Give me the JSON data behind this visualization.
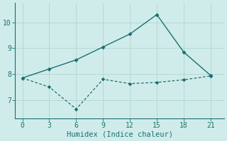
{
  "line1_x": [
    0,
    3,
    6,
    9,
    12,
    15,
    18,
    21
  ],
  "line1_y": [
    7.85,
    8.2,
    8.55,
    9.05,
    9.55,
    10.3,
    8.85,
    7.95
  ],
  "line2_x": [
    0,
    3,
    6,
    9,
    12,
    15,
    18,
    21
  ],
  "line2_y": [
    7.85,
    7.5,
    6.65,
    7.8,
    7.63,
    7.68,
    7.78,
    7.93
  ],
  "xlabel": "Humidex (Indice chaleur)",
  "bg_color": "#d0ecea",
  "line_color": "#1a7070",
  "grid_color": "#b0d4d0",
  "spine_color": "#1a7070",
  "xticks": [
    0,
    3,
    6,
    9,
    12,
    15,
    18,
    21
  ],
  "yticks": [
    7,
    8,
    9,
    10
  ],
  "xlim": [
    -0.8,
    22.5
  ],
  "ylim": [
    6.3,
    10.75
  ],
  "tick_fontsize": 7,
  "xlabel_fontsize": 7.5
}
